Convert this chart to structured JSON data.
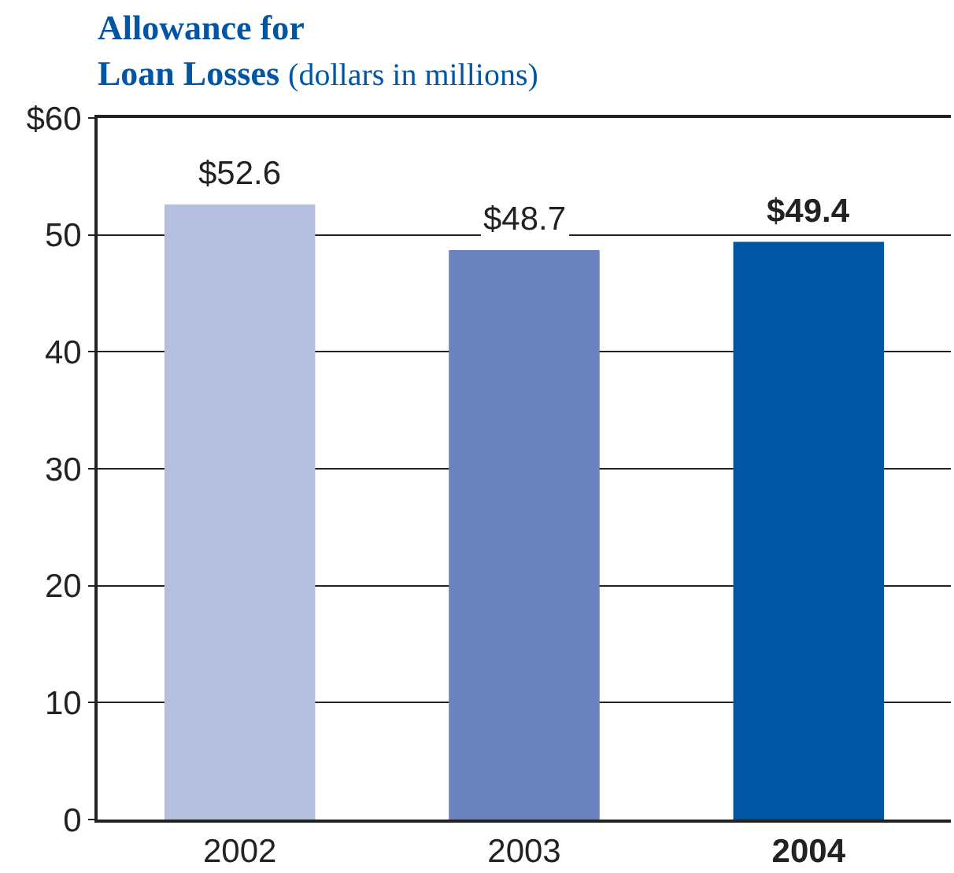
{
  "chart_data": {
    "type": "bar",
    "title": "Allowance for\nLoan Losses",
    "subtitle": "(dollars in millions)",
    "categories": [
      "2002",
      "2003",
      "2004"
    ],
    "values": [
      52.6,
      48.7,
      49.4
    ],
    "colors": [
      "#b4bedf",
      "#6a82be",
      "#0055a4"
    ],
    "value_labels": [
      "$52.6",
      "$48.7",
      "$49.4"
    ],
    "ylim": [
      0,
      60
    ],
    "yticks": [
      0,
      10,
      20,
      30,
      40,
      50,
      {
        "value": 60,
        "label": "$60"
      }
    ],
    "grid": "y"
  }
}
